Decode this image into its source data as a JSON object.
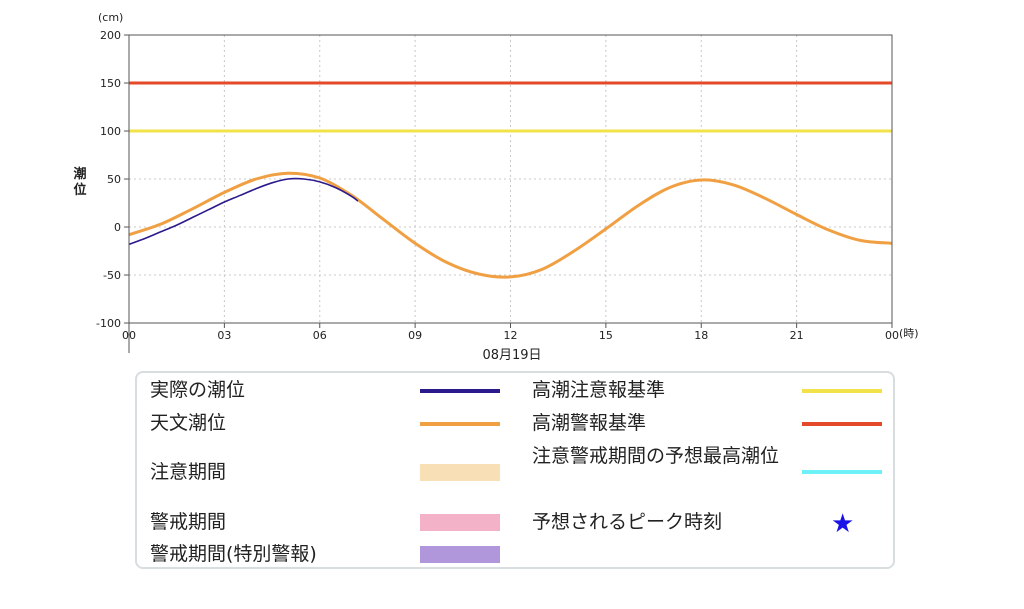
{
  "chart_data": {
    "type": "line",
    "y_unit": "(cm)",
    "x_unit": "(時)",
    "ylabel": "潮位",
    "date_label": "08月19日",
    "ylim": [
      -100,
      200
    ],
    "y_ticks": [
      "200",
      "150",
      "100",
      "50",
      "0",
      "-50",
      "-100"
    ],
    "x_ticks": [
      "00",
      "03",
      "06",
      "09",
      "12",
      "15",
      "18",
      "21",
      "00"
    ],
    "xlim_hours": [
      0,
      24
    ],
    "grid": true,
    "series": [
      {
        "name": "天文潮位",
        "color": "#f0a043",
        "x": [
          0,
          1,
          2,
          3,
          4,
          5,
          6,
          7,
          8,
          9,
          10,
          11,
          12,
          13,
          14,
          15,
          16,
          17,
          18,
          19,
          20,
          21,
          22,
          23,
          24
        ],
        "values": [
          -8,
          3,
          19,
          36,
          50,
          56,
          51,
          33,
          8,
          -17,
          -37,
          -49,
          -52,
          -44,
          -25,
          -2,
          22,
          41,
          49,
          44,
          30,
          13,
          -3,
          -14,
          -17
        ]
      },
      {
        "name": "実際の潮位",
        "color": "#2a1a8c",
        "x": [
          0,
          0.5,
          1,
          1.5,
          2,
          2.5,
          3,
          3.5,
          4,
          4.5,
          5,
          5.5,
          6,
          6.5,
          7,
          7.2
        ],
        "values": [
          -18,
          -12,
          -5,
          2,
          10,
          18,
          26,
          33,
          40,
          46,
          50,
          50,
          47,
          41,
          32,
          27
        ]
      }
    ],
    "thresholds": [
      {
        "name": "高潮警報基準",
        "value": 150,
        "color": "#e4492a"
      },
      {
        "name": "高潮注意報基準",
        "value": 100,
        "color": "#f2e24a"
      }
    ]
  },
  "legend": {
    "items": [
      {
        "label": "実際の潮位",
        "kind": "line",
        "color": "#2a1a8c"
      },
      {
        "label": "天文潮位",
        "kind": "line",
        "color": "#f0a043"
      },
      {
        "label": "注意期間",
        "kind": "box",
        "color": "#f8dfb5"
      },
      {
        "label": "警戒期間",
        "kind": "box",
        "color": "#f3b2c8"
      },
      {
        "label": "警戒期間(特別警報)",
        "kind": "box",
        "color": "#b097dc"
      },
      {
        "label": "高潮注意報基準",
        "kind": "line",
        "color": "#f2e24a"
      },
      {
        "label": "高潮警報基準",
        "kind": "line",
        "color": "#e4492a"
      },
      {
        "label": "注意警戒期間の予想最高潮位",
        "kind": "line",
        "color": "#6ef0f7"
      },
      {
        "label": "予想されるピーク時刻",
        "kind": "star",
        "color": "#1a12e6"
      }
    ],
    "star_glyph": "★"
  }
}
